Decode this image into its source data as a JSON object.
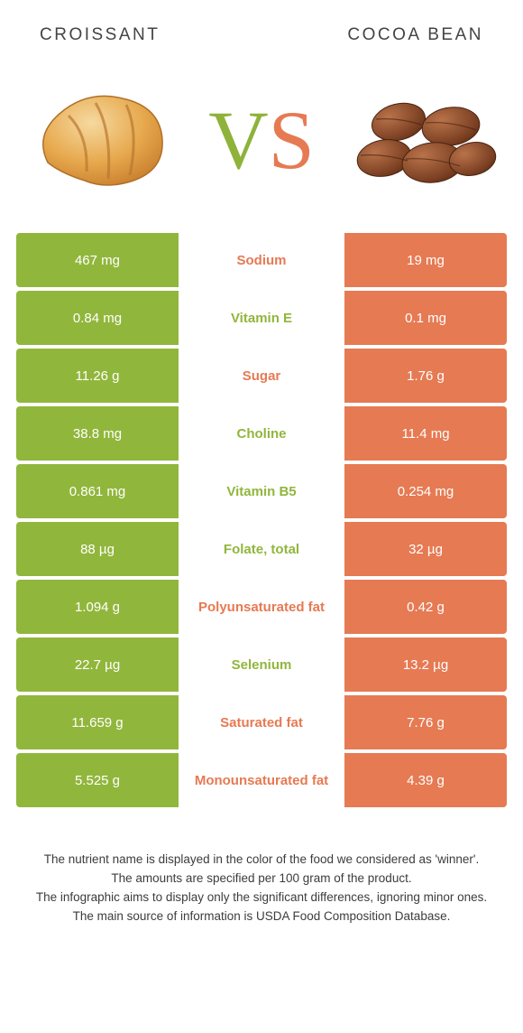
{
  "colors": {
    "left": "#91b63c",
    "right": "#e67a53",
    "bg": "#ffffff",
    "text": "#333333"
  },
  "header": {
    "left_title": "Croissant",
    "right_title": "Cocoa bean"
  },
  "vs": {
    "v": "V",
    "s": "S"
  },
  "rows": [
    {
      "left": "467 mg",
      "label": "Sodium",
      "right": "19 mg",
      "winner": "right"
    },
    {
      "left": "0.84 mg",
      "label": "Vitamin E",
      "right": "0.1 mg",
      "winner": "left"
    },
    {
      "left": "11.26 g",
      "label": "Sugar",
      "right": "1.76 g",
      "winner": "right"
    },
    {
      "left": "38.8 mg",
      "label": "Choline",
      "right": "11.4 mg",
      "winner": "left"
    },
    {
      "left": "0.861 mg",
      "label": "Vitamin B5",
      "right": "0.254 mg",
      "winner": "left"
    },
    {
      "left": "88 µg",
      "label": "Folate, total",
      "right": "32 µg",
      "winner": "left"
    },
    {
      "left": "1.094 g",
      "label": "Polyunsaturated fat",
      "right": "0.42 g",
      "winner": "right"
    },
    {
      "left": "22.7 µg",
      "label": "Selenium",
      "right": "13.2 µg",
      "winner": "left"
    },
    {
      "left": "11.659 g",
      "label": "Saturated fat",
      "right": "7.76 g",
      "winner": "right"
    },
    {
      "left": "5.525 g",
      "label": "Monounsaturated fat",
      "right": "4.39 g",
      "winner": "right"
    }
  ],
  "footer": {
    "line1": "The nutrient name is displayed in the color of the food we considered as 'winner'.",
    "line2": "The amounts are specified per 100 gram of the product.",
    "line3": "The infographic aims to display only the significant differences, ignoring minor ones.",
    "line4": "The main source of information is USDA Food Composition Database."
  }
}
